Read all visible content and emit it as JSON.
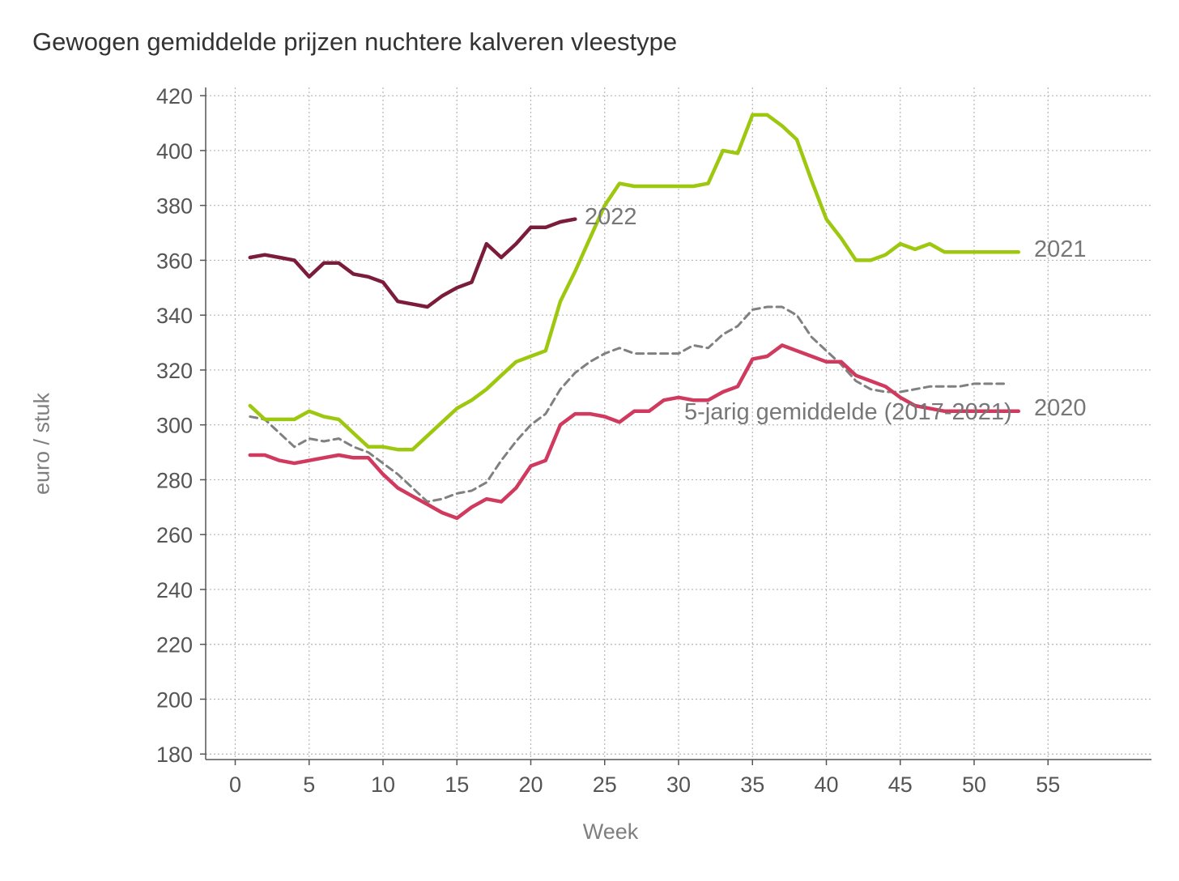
{
  "chart_data": {
    "type": "line",
    "title": "Gewogen gemiddelde prijzen nuchtere kalveren vleestype",
    "xlabel": "Week",
    "ylabel": "euro / stuk",
    "xlim": [
      -2,
      62
    ],
    "ylim": [
      178,
      423
    ],
    "x_ticks": [
      0,
      5,
      10,
      15,
      20,
      25,
      30,
      35,
      40,
      45,
      50,
      55
    ],
    "y_ticks": [
      180,
      200,
      220,
      240,
      260,
      280,
      300,
      320,
      340,
      360,
      380,
      400,
      420
    ],
    "grid": true,
    "series": [
      {
        "name": "5-jarig gemiddelde (2017-2021)",
        "color": "#808080",
        "dashed": true,
        "x": [
          1,
          2,
          3,
          4,
          5,
          6,
          7,
          8,
          9,
          10,
          11,
          12,
          13,
          14,
          15,
          16,
          17,
          18,
          19,
          20,
          21,
          22,
          23,
          24,
          25,
          26,
          27,
          28,
          29,
          30,
          31,
          32,
          33,
          34,
          35,
          36,
          37,
          38,
          39,
          40,
          41,
          42,
          43,
          44,
          45,
          46,
          47,
          48,
          49,
          50,
          51,
          52
        ],
        "y": [
          303,
          302,
          297,
          292,
          295,
          294,
          295,
          292,
          290,
          286,
          282,
          277,
          272,
          273,
          275,
          276,
          279,
          287,
          294,
          300,
          304,
          313,
          319,
          323,
          326,
          328,
          326,
          326,
          326,
          326,
          329,
          328,
          333,
          336,
          342,
          343,
          343,
          340,
          332,
          327,
          322,
          316,
          313,
          312,
          312,
          313,
          314,
          314,
          314,
          315,
          315,
          315
        ]
      },
      {
        "name": "2020",
        "color": "#d03a5e",
        "dashed": false,
        "x": [
          1,
          2,
          3,
          4,
          5,
          6,
          7,
          8,
          9,
          10,
          11,
          12,
          13,
          14,
          15,
          16,
          17,
          18,
          19,
          20,
          21,
          22,
          23,
          24,
          25,
          26,
          27,
          28,
          29,
          30,
          31,
          32,
          33,
          34,
          35,
          36,
          37,
          38,
          39,
          40,
          41,
          42,
          43,
          44,
          45,
          46,
          47,
          48,
          49,
          50,
          51,
          52,
          53
        ],
        "y": [
          289,
          289,
          287,
          286,
          287,
          288,
          289,
          288,
          288,
          282,
          277,
          274,
          271,
          268,
          266,
          270,
          273,
          272,
          277,
          285,
          287,
          300,
          304,
          304,
          303,
          301,
          305,
          305,
          309,
          310,
          309,
          309,
          312,
          314,
          324,
          325,
          329,
          327,
          325,
          323,
          323,
          318,
          316,
          314,
          310,
          307,
          306,
          305,
          305,
          305,
          305,
          305,
          305
        ]
      },
      {
        "name": "2021",
        "color": "#9dc80f",
        "dashed": false,
        "x": [
          1,
          2,
          3,
          4,
          5,
          6,
          7,
          8,
          9,
          10,
          11,
          12,
          13,
          14,
          15,
          16,
          17,
          18,
          19,
          20,
          21,
          22,
          23,
          24,
          25,
          26,
          27,
          28,
          29,
          30,
          31,
          32,
          33,
          34,
          35,
          36,
          37,
          38,
          39,
          40,
          41,
          42,
          43,
          44,
          45,
          46,
          47,
          48,
          49,
          50,
          51,
          52,
          53
        ],
        "y": [
          307,
          302,
          302,
          302,
          305,
          303,
          302,
          297,
          292,
          292,
          291,
          291,
          296,
          301,
          306,
          309,
          313,
          318,
          323,
          325,
          327,
          345,
          356,
          368,
          380,
          388,
          387,
          387,
          387,
          387,
          387,
          388,
          400,
          399,
          413,
          413,
          409,
          404,
          389,
          375,
          368,
          360,
          360,
          362,
          366,
          364,
          366,
          363,
          363,
          363,
          363,
          363,
          363
        ]
      },
      {
        "name": "2022",
        "color": "#7b1d3a",
        "dashed": false,
        "x": [
          1,
          2,
          3,
          4,
          5,
          6,
          7,
          8,
          9,
          10,
          11,
          12,
          13,
          14,
          15,
          16,
          17,
          18,
          19,
          20,
          21,
          22,
          23
        ],
        "y": [
          361,
          362,
          361,
          360,
          354,
          359,
          359,
          355,
          354,
          352,
          345,
          344,
          343,
          347,
          350,
          352,
          366,
          361,
          366,
          372,
          372,
          374,
          375
        ]
      }
    ],
    "annotations": [
      "2022",
      "2021",
      "2020",
      "5-jarig gemiddelde (2017-2021)"
    ]
  }
}
